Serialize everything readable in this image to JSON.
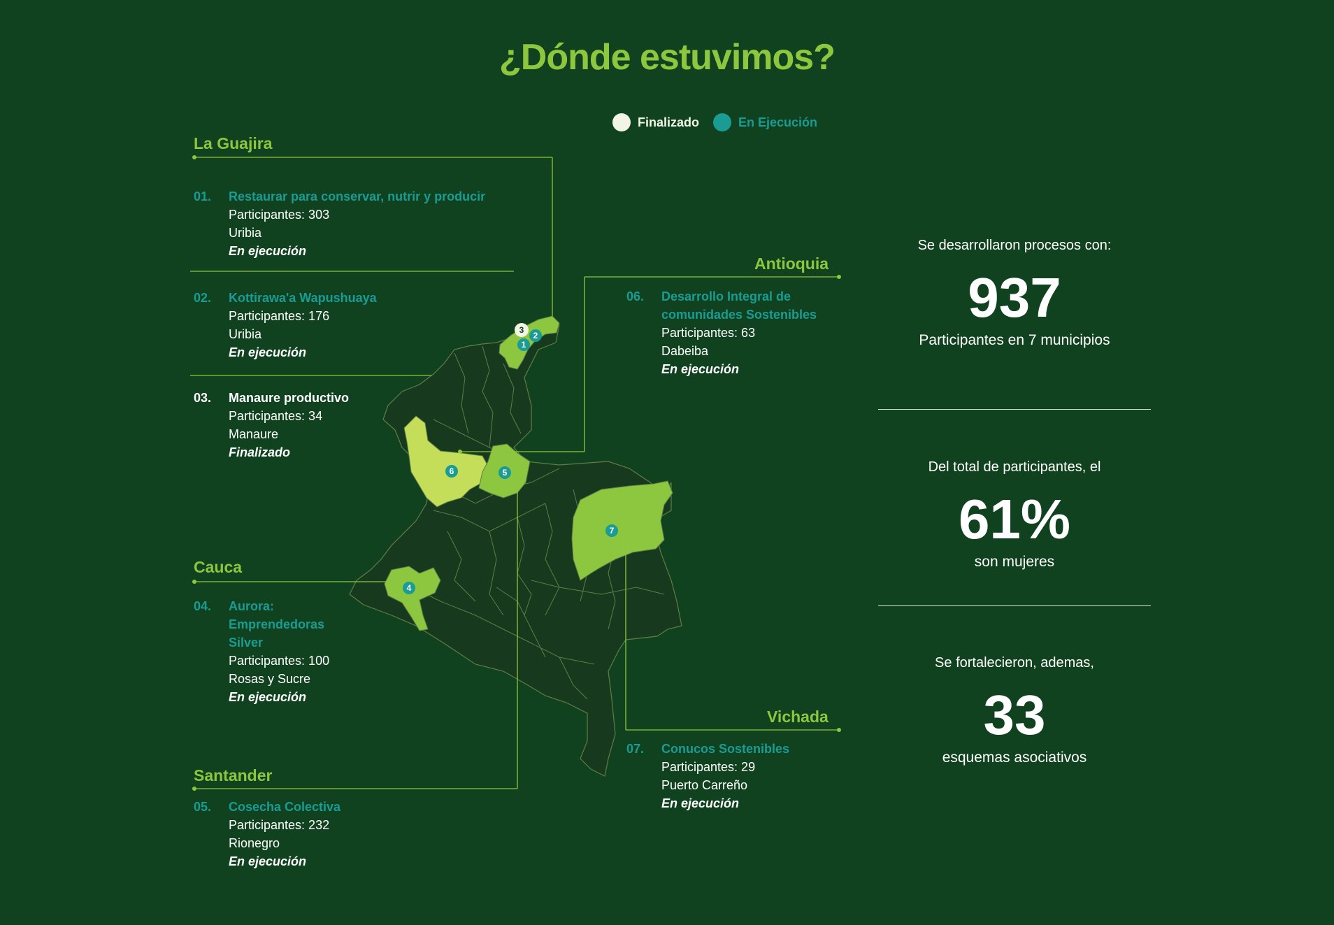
{
  "title": "¿Dónde estuvimos?",
  "legend": {
    "finished_label": "Finalizado",
    "active_label": "En Ejecución",
    "finished_color": "#F2F5E6",
    "active_color": "#1A9C94"
  },
  "regions": {
    "la_guajira": "La Guajira",
    "antioquia": "Antioquia",
    "cauca": "Cauca",
    "santander": "Santander",
    "vichada": "Vichada"
  },
  "projects": [
    {
      "num": "01.",
      "name_line1": "Restaurar para conservar, nutrir y producir",
      "participants": "Participantes: 303",
      "place": "Uribia",
      "status": "En ejecución"
    },
    {
      "num": "02.",
      "name_line1": "Kottirawa'a Wapushuaya",
      "participants": "Participantes: 176",
      "place": "Uribia",
      "status": "En ejecución"
    },
    {
      "num": "03.",
      "name_line1": "Manaure productivo",
      "participants": "Participantes: 34",
      "place": "Manaure",
      "status": "Finalizado"
    },
    {
      "num": "04.",
      "name_line1": "Aurora:",
      "name_line2": "Emprendedoras",
      "name_line3": "Silver",
      "participants": "Participantes: 100",
      "place": "Rosas y Sucre",
      "status": "En ejecución"
    },
    {
      "num": "05.",
      "name_line1": "Cosecha Colectiva",
      "participants": "Participantes: 232",
      "place": "Rionegro",
      "status": "En ejecución"
    },
    {
      "num": "06.",
      "name_line1": "Desarrollo Integral de",
      "name_line2": "comunidades Sostenibles",
      "participants": "Participantes: 63",
      "place": "Dabeiba",
      "status": "En ejecución"
    },
    {
      "num": "07.",
      "name_line1": "Conucos Sostenibles",
      "participants": "Participantes: 29",
      "place": "Puerto Carreño",
      "status": "En ejecución"
    }
  ],
  "map_markers": [
    "1",
    "2",
    "3",
    "4",
    "5",
    "6",
    "7"
  ],
  "stats": [
    {
      "intro": "Se desarrollaron procesos con:",
      "value": "937",
      "after": "Participantes en 7 municipios"
    },
    {
      "intro": "Del total de participantes, el",
      "value": "61%",
      "after": "son mujeres"
    },
    {
      "intro": "Se fortalecieron, ademas,",
      "value": "33",
      "after": "esquemas asociativos"
    }
  ],
  "colors": {
    "background": "#11421F",
    "accent_green": "#8DC63F",
    "teal": "#1A9C94",
    "map_base": "#173A1E",
    "map_highlight": "#8DC63F",
    "map_highlight_light": "#C5DE5A"
  }
}
